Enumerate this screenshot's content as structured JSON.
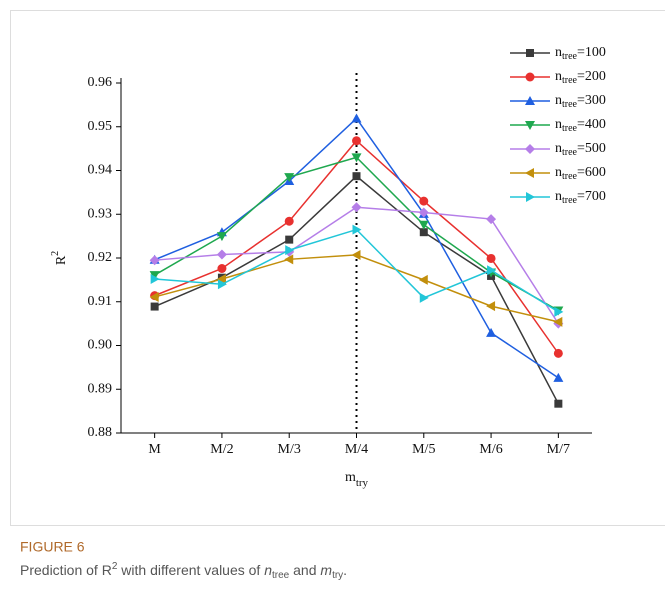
{
  "chart_data": {
    "type": "line",
    "ylabel": {
      "base": "R",
      "sup": "2"
    },
    "xlabel": {
      "base": "m",
      "sub": "try"
    },
    "legend_label": {
      "base": "n",
      "sub": "tree"
    },
    "categories": [
      "M",
      "M/2",
      "M/3",
      "M/4",
      "M/5",
      "M/6",
      "M/7"
    ],
    "reference_line": "M/4",
    "ylim": [
      0.88,
      0.96
    ],
    "yticks": [
      0.88,
      0.89,
      {
        "value": 0.9,
        "label": "0.90"
      },
      0.91,
      0.92,
      0.93,
      0.94,
      0.95,
      0.96
    ],
    "legend": "upper right",
    "series": [
      {
        "name": "=100",
        "color": "#3a3a3a",
        "marker": "square",
        "values": [
          0.9089,
          0.9155,
          0.9242,
          0.9387,
          0.9259,
          0.9159,
          0.8867
        ]
      },
      {
        "name": "=200",
        "color": "#e8312f",
        "marker": "circle",
        "values": [
          0.9114,
          0.9176,
          0.9284,
          0.9468,
          0.933,
          0.9199,
          0.8982
        ]
      },
      {
        "name": "=300",
        "color": "#1f5fe0",
        "marker": "triangle-up",
        "values": [
          0.9196,
          0.9259,
          0.9376,
          0.9519,
          0.9301,
          0.9029,
          0.8926
        ]
      },
      {
        "name": "=400",
        "color": "#1fa84f",
        "marker": "triangle-down",
        "values": [
          0.9161,
          0.925,
          0.9385,
          0.943,
          0.9276,
          0.9167,
          0.908
        ]
      },
      {
        "name": "=500",
        "color": "#b57ee8",
        "marker": "diamond",
        "values": [
          0.9195,
          0.9208,
          0.9214,
          0.9316,
          0.9304,
          0.9289,
          0.905
        ]
      },
      {
        "name": "=600",
        "color": "#c28f0c",
        "marker": "triangle-left",
        "values": [
          0.9111,
          0.9152,
          0.9197,
          0.9207,
          0.915,
          0.909,
          0.9054
        ]
      },
      {
        "name": "=700",
        "color": "#22c6d8",
        "marker": "triangle-right",
        "values": [
          0.9152,
          0.914,
          0.9218,
          0.9265,
          0.9109,
          0.9172,
          0.9077
        ]
      }
    ]
  },
  "caption": {
    "label": "FIGURE 6",
    "segments": [
      {
        "text": "Prediction of R"
      },
      {
        "sup": "2"
      },
      {
        "text": " with different values of "
      },
      {
        "italic": "n"
      },
      {
        "sub": "tree"
      },
      {
        "text": " and "
      },
      {
        "italic": "m"
      },
      {
        "sub": "try"
      },
      {
        "text": "."
      }
    ]
  }
}
